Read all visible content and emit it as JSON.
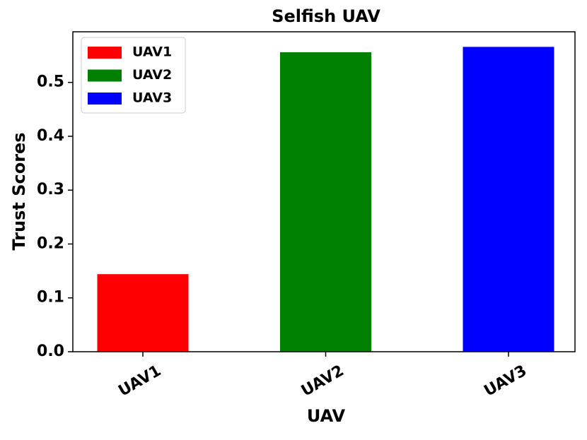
{
  "chart_data": {
    "type": "bar",
    "title": "Selfish UAV",
    "x_label": "UAV",
    "y_label": "Trust Scores",
    "categories": [
      "UAV1",
      "UAV2",
      "UAV3"
    ],
    "values": [
      0.144,
      0.556,
      0.566
    ],
    "colors": [
      "#ff0000",
      "#008000",
      "#0000ff"
    ],
    "ylim": [
      0,
      0.594
    ],
    "yticks": [
      {
        "value": 0,
        "label": "0.0"
      },
      0.1,
      0.2,
      0.3,
      0.4,
      0.5
    ],
    "legend": "upper left"
  }
}
